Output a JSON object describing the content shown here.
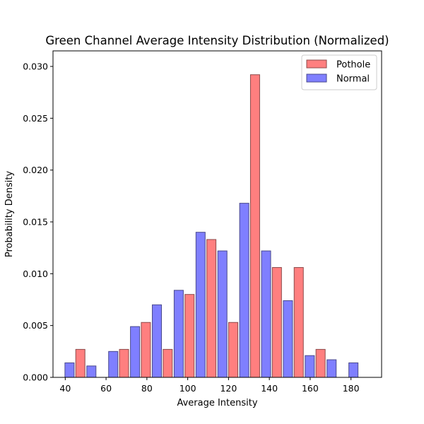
{
  "chart_data": {
    "type": "bar",
    "title": "Green Channel Average Intensity Distribution (Normalized)",
    "xlabel": "Average Intensity",
    "ylabel": "Probability Density",
    "xlim": [
      34,
      195
    ],
    "ylim": [
      0,
      0.0315
    ],
    "xticks": [
      40,
      60,
      80,
      100,
      120,
      140,
      160,
      180
    ],
    "yticks": [
      0.0,
      0.005,
      0.01,
      0.015,
      0.02,
      0.025,
      0.03
    ],
    "ytick_labels": [
      "0.000",
      "0.005",
      "0.010",
      "0.015",
      "0.020",
      "0.025",
      "0.030"
    ],
    "grid": false,
    "legend_position": "upper right",
    "series": [
      {
        "name": "Pothole",
        "color": "#ff7f7f",
        "edge_color": "#8c4a4a",
        "x": [
          47.4,
          68.8,
          79.5,
          90.2,
          100.9,
          111.6,
          122.3,
          133.0,
          143.7,
          154.4,
          165.1
        ],
        "values": [
          0.0027,
          0.0027,
          0.0053,
          0.0027,
          0.008,
          0.0133,
          0.0053,
          0.0292,
          0.0106,
          0.0106,
          0.0027
        ]
      },
      {
        "name": "Normal",
        "color": "#7f7fff",
        "edge_color": "#4a4a8c",
        "x": [
          42.1,
          52.8,
          63.5,
          74.2,
          84.9,
          95.6,
          106.3,
          117.0,
          127.7,
          138.4,
          149.1,
          159.8,
          170.5,
          181.2
        ],
        "values": [
          0.0014,
          0.0011,
          0.0025,
          0.0049,
          0.007,
          0.0084,
          0.014,
          0.0122,
          0.0168,
          0.0122,
          0.0074,
          0.0021,
          0.0017,
          0.0014
        ]
      }
    ],
    "bar_width": 4.5
  }
}
